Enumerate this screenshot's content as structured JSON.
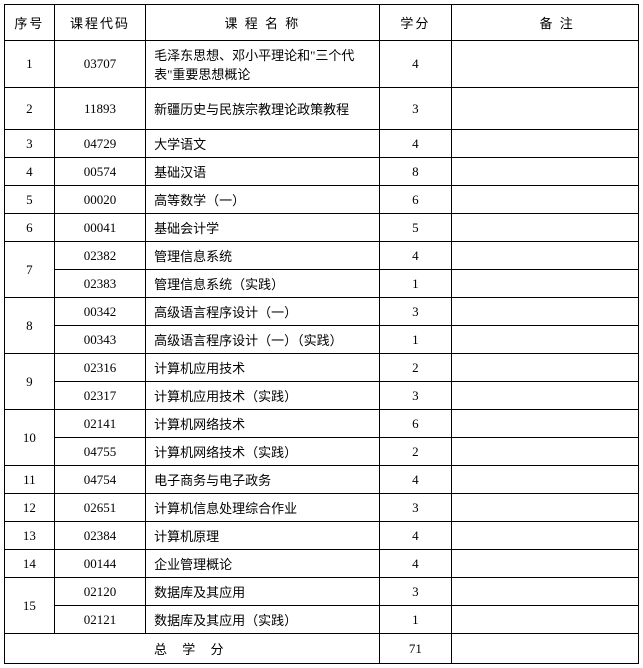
{
  "table": {
    "headers": {
      "seq": "序号",
      "code": "课程代码",
      "name": "课 程  名 称",
      "credit": "学分",
      "note": "备      注"
    },
    "rows": [
      {
        "seq": "1",
        "rowspan": 1,
        "code": "03707",
        "name": "毛泽东思想、邓小平理论和\"三个代表\"重要思想概论",
        "credit": "4",
        "note": "",
        "tall": true
      },
      {
        "seq": "2",
        "rowspan": 1,
        "code": "11893",
        "name": "新疆历史与民族宗教理论政策教程",
        "credit": "3",
        "note": "",
        "tall": true
      },
      {
        "seq": "3",
        "rowspan": 1,
        "code": "04729",
        "name": "大学语文",
        "credit": "4",
        "note": ""
      },
      {
        "seq": "4",
        "rowspan": 1,
        "code": "00574",
        "name": "基础汉语",
        "credit": "8",
        "note": ""
      },
      {
        "seq": "5",
        "rowspan": 1,
        "code": "00020",
        "name": "高等数学（一）",
        "credit": "6",
        "note": ""
      },
      {
        "seq": "6",
        "rowspan": 1,
        "code": "00041",
        "name": "基础会计学",
        "credit": "5",
        "note": ""
      },
      {
        "seq": "7",
        "rowspan": 2,
        "code": "02382",
        "name": "管理信息系统",
        "credit": "4",
        "note": ""
      },
      {
        "code": "02383",
        "name": "管理信息系统（实践）",
        "credit": "1",
        "note": ""
      },
      {
        "seq": "8",
        "rowspan": 2,
        "code": "00342",
        "name": "高级语言程序设计（一）",
        "credit": "3",
        "note": ""
      },
      {
        "code": "00343",
        "name": "高级语言程序设计（一）（实践）",
        "credit": "1",
        "note": ""
      },
      {
        "seq": "9",
        "rowspan": 2,
        "code": "02316",
        "name": "计算机应用技术",
        "credit": "2",
        "note": ""
      },
      {
        "code": "02317",
        "name": "计算机应用技术（实践）",
        "credit": "3",
        "note": ""
      },
      {
        "seq": "10",
        "rowspan": 2,
        "code": "02141",
        "name": "计算机网络技术",
        "credit": "6",
        "note": ""
      },
      {
        "code": "04755",
        "name": "计算机网络技术（实践）",
        "credit": "2",
        "note": ""
      },
      {
        "seq": "11",
        "rowspan": 1,
        "code": "04754",
        "name": "电子商务与电子政务",
        "credit": "4",
        "note": ""
      },
      {
        "seq": "12",
        "rowspan": 1,
        "code": "02651",
        "name": "计算机信息处理综合作业",
        "credit": "3",
        "note": ""
      },
      {
        "seq": "13",
        "rowspan": 1,
        "code": "02384",
        "name": "计算机原理",
        "credit": "4",
        "note": ""
      },
      {
        "seq": "14",
        "rowspan": 1,
        "code": "00144",
        "name": "企业管理概论",
        "credit": "4",
        "note": ""
      },
      {
        "seq": "15",
        "rowspan": 2,
        "code": "02120",
        "name": "数据库及其应用",
        "credit": "3",
        "note": ""
      },
      {
        "code": "02121",
        "name": "数据库及其应用（实践）",
        "credit": "1",
        "note": ""
      }
    ],
    "total": {
      "label": "总 学 分",
      "value": "71"
    },
    "columns": {
      "widths": {
        "seq": 48,
        "code": 88,
        "name": 225,
        "credit": 70,
        "note": 180
      }
    },
    "styling": {
      "border_color": "#000000",
      "background_color": "#ffffff",
      "font_family": "SimSun",
      "header_fontsize": 13,
      "cell_fontsize": 13,
      "row_height_normal": 27,
      "row_height_tall": 42,
      "row_height_header": 36
    }
  }
}
